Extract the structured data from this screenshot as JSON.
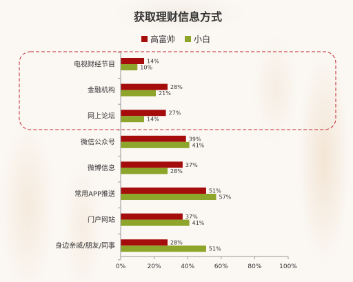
{
  "chart_data": {
    "type": "bar",
    "orientation": "horizontal",
    "title": "获取理财信息方式",
    "categories": [
      "电视财经节目",
      "金融机构",
      "网上论坛",
      "微信公众号",
      "微博信息",
      "常用APP推送",
      "门户网站",
      "身边亲戚/朋友/同事"
    ],
    "series": [
      {
        "name": "高富帅",
        "values": [
          14,
          28,
          27,
          39,
          37,
          51,
          37,
          28
        ],
        "color": "#a50d0d"
      },
      {
        "name": "小白",
        "values": [
          10,
          21,
          14,
          41,
          28,
          57,
          41,
          51
        ],
        "color": "#8da52a"
      }
    ],
    "value_suffix": "%",
    "xlim": [
      0,
      100
    ],
    "xticks": [
      "0%",
      "20%",
      "40%",
      "60%",
      "80%",
      "100%"
    ],
    "legend_position": "top",
    "grid": false,
    "highlight_categories": [
      "电视财经节目",
      "金融机构",
      "网上论坛"
    ],
    "highlight_color": "#c0272d"
  }
}
